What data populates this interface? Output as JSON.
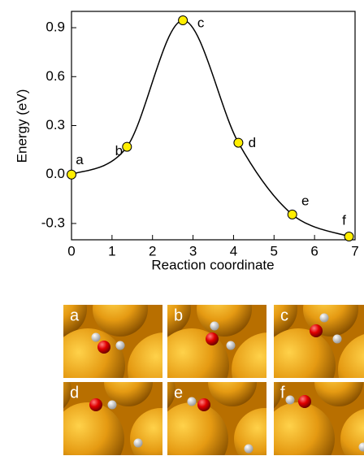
{
  "chart_data": {
    "type": "line",
    "x_label": "Reaction coordinate",
    "y_label": "Energy (eV)",
    "series": [
      {
        "x": [
          0,
          1.37,
          2.75,
          4.12,
          5.45,
          6.85
        ],
        "values": [
          0.0,
          0.17,
          0.945,
          0.195,
          -0.245,
          -0.38
        ],
        "point_labels": [
          "a",
          "b",
          "c",
          "d",
          "e",
          "f"
        ],
        "color": "#000000",
        "marker_color": "#ffee00"
      }
    ],
    "xlim": [
      0,
      7
    ],
    "xticks": [
      0,
      1,
      2,
      3,
      4,
      5,
      6,
      7
    ],
    "ylim": [
      -0.4,
      1.0
    ],
    "yticks": [
      {
        "value": 0.9,
        "label": "0.9"
      },
      {
        "value": 0.6,
        "label": "0.6"
      },
      {
        "value": 0.3,
        "label": "0.3"
      },
      {
        "value": 0,
        "label": "0.0"
      },
      {
        "value": -0.3,
        "label": "-0.3"
      }
    ]
  },
  "panels": [
    "a",
    "b",
    "c",
    "d",
    "e",
    "f"
  ]
}
